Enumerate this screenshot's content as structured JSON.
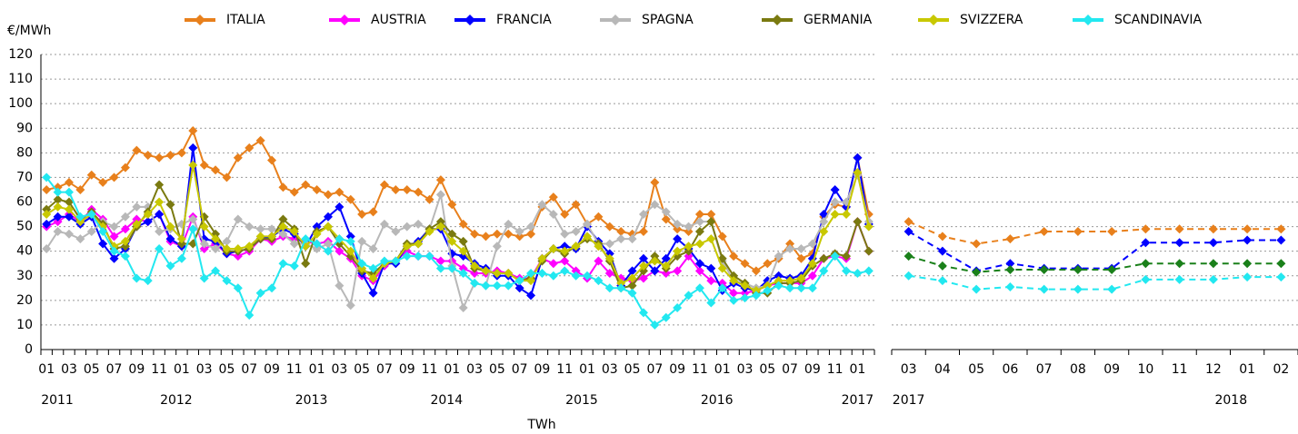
{
  "chart_data": [
    {
      "type": "line",
      "y_label": "€/MWh",
      "x_label": "TWh",
      "ylim": [
        0,
        120
      ],
      "yticks": [
        0,
        10,
        20,
        30,
        40,
        50,
        60,
        70,
        80,
        90,
        100,
        110,
        120
      ],
      "grid": true,
      "ytick_labels": true,
      "legend": "top",
      "categories": [
        "01",
        null,
        "03",
        null,
        "05",
        null,
        "07",
        null,
        "09",
        null,
        "11",
        null,
        "01",
        null,
        "03",
        null,
        "05",
        null,
        "07",
        null,
        "09",
        null,
        "11",
        null,
        "01",
        null,
        "03",
        null,
        "05",
        null,
        "07",
        null,
        "09",
        null,
        "11",
        null,
        "01",
        null,
        "03",
        null,
        "05",
        null,
        "07",
        null,
        "09",
        null,
        "11",
        null,
        "01",
        null,
        "03",
        null,
        "05",
        null,
        "07",
        null,
        "09",
        null,
        "11",
        null,
        "01",
        null,
        "03",
        null,
        "05",
        null,
        "07",
        null,
        "09",
        null,
        "11",
        null,
        "01",
        null
      ],
      "years": [
        "2011",
        "2012",
        "2013",
        "2014",
        "2015",
        "2016",
        "2017"
      ],
      "series": [
        {
          "name": "ITALIA",
          "color": "#e8801c",
          "values": [
            65,
            66,
            68,
            65,
            71,
            68,
            70,
            74,
            81,
            79,
            78,
            79,
            80,
            89,
            75,
            73,
            70,
            78,
            82,
            85,
            77,
            66,
            64,
            67,
            65,
            63,
            64,
            61,
            55,
            56,
            67,
            65,
            65,
            64,
            61,
            69,
            59,
            51,
            47,
            46,
            47,
            47,
            46,
            47,
            58,
            62,
            55,
            59,
            51,
            54,
            50,
            48,
            47,
            48,
            68,
            53,
            49,
            48,
            55,
            55,
            46,
            38,
            35,
            32,
            35,
            37,
            43,
            37,
            39,
            54,
            59,
            58,
            78,
            55
          ]
        },
        {
          "name": "AUSTRIA",
          "color": "#ff00ff",
          "values": [
            50,
            52,
            55,
            52,
            57,
            53,
            46,
            49,
            53,
            52,
            55,
            44,
            42,
            54,
            41,
            43,
            39,
            38,
            40,
            45,
            44,
            46,
            45,
            44,
            43,
            44,
            40,
            37,
            30,
            28,
            34,
            36,
            40,
            38,
            38,
            36,
            36,
            33,
            31,
            31,
            32,
            31,
            29,
            29,
            37,
            35,
            36,
            32,
            29,
            36,
            31,
            29,
            28,
            29,
            32,
            31,
            32,
            38,
            32,
            28,
            27,
            23,
            23,
            24,
            26,
            27,
            27,
            27,
            30,
            37,
            38,
            37,
            52,
            40
          ]
        },
        {
          "name": "FRANCIA",
          "color": "#0000ff",
          "values": [
            51,
            54,
            54,
            51,
            54,
            43,
            37,
            41,
            50,
            52,
            55,
            45,
            42,
            82,
            45,
            44,
            39,
            40,
            41,
            45,
            46,
            49,
            47,
            42,
            50,
            54,
            58,
            46,
            31,
            23,
            35,
            35,
            42,
            44,
            49,
            49,
            39,
            38,
            35,
            33,
            30,
            30,
            25,
            22,
            37,
            41,
            42,
            41,
            50,
            44,
            39,
            26,
            32,
            37,
            32,
            37,
            45,
            41,
            35,
            33,
            24,
            27,
            25,
            24,
            28,
            30,
            29,
            30,
            37,
            55,
            65,
            58,
            78,
            51
          ]
        },
        {
          "name": "SPAGNA",
          "color": "#b8b8b8",
          "values": [
            41,
            48,
            47,
            45,
            48,
            52,
            50,
            54,
            58,
            58,
            48,
            49,
            51,
            53,
            43,
            41,
            44,
            53,
            50,
            49,
            49,
            47,
            43,
            43,
            41,
            43,
            26,
            18,
            44,
            41,
            51,
            48,
            50,
            51,
            49,
            63,
            34,
            17,
            27,
            26,
            42,
            51,
            48,
            50,
            59,
            55,
            47,
            48,
            51,
            43,
            43,
            45,
            45,
            55,
            59,
            56,
            51,
            50,
            52,
            52,
            36,
            28,
            27,
            25,
            26,
            38,
            41,
            41,
            43,
            52,
            60,
            60,
            71,
            52
          ]
        },
        {
          "name": "GERMANIA",
          "color": "#7a7a10",
          "values": [
            57,
            61,
            60,
            53,
            56,
            51,
            41,
            42,
            50,
            56,
            67,
            59,
            43,
            43,
            54,
            47,
            40,
            40,
            41,
            45,
            45,
            53,
            49,
            35,
            48,
            50,
            43,
            38,
            32,
            31,
            35,
            36,
            43,
            43,
            49,
            52,
            47,
            44,
            33,
            32,
            31,
            31,
            28,
            29,
            36,
            41,
            39,
            42,
            45,
            43,
            36,
            25,
            26,
            32,
            38,
            33,
            38,
            40,
            48,
            52,
            37,
            30,
            27,
            23,
            23,
            27,
            27,
            28,
            34,
            37,
            39,
            38,
            52,
            40
          ]
        },
        {
          "name": "SVIZZERA",
          "color": "#c8c800",
          "values": [
            55,
            58,
            57,
            52,
            55,
            50,
            42,
            44,
            51,
            55,
            60,
            50,
            45,
            75,
            50,
            45,
            41,
            41,
            42,
            46,
            46,
            50,
            48,
            42,
            47,
            50,
            45,
            40,
            33,
            29,
            35,
            36,
            42,
            43,
            48,
            50,
            44,
            40,
            34,
            32,
            31,
            31,
            28,
            28,
            37,
            41,
            40,
            42,
            46,
            42,
            37,
            27,
            29,
            34,
            36,
            34,
            40,
            42,
            43,
            45,
            33,
            28,
            26,
            24,
            26,
            28,
            28,
            29,
            35,
            48,
            55,
            55,
            72,
            50
          ]
        },
        {
          "name": "SCANDINAVIA",
          "color": "#22e8f0",
          "values": [
            70,
            64,
            64,
            54,
            55,
            48,
            40,
            38,
            29,
            28,
            41,
            34,
            37,
            49,
            29,
            32,
            28,
            25,
            14,
            23,
            25,
            35,
            34,
            45,
            43,
            40,
            45,
            44,
            35,
            33,
            36,
            36,
            38,
            38,
            38,
            33,
            33,
            31,
            27,
            26,
            26,
            26,
            28,
            31,
            31,
            30,
            32,
            30,
            30,
            28,
            25,
            25,
            23,
            15,
            10,
            13,
            17,
            22,
            25,
            19,
            25,
            20,
            21,
            22,
            24,
            26,
            25,
            25,
            25,
            32,
            38,
            32,
            31,
            32
          ]
        }
      ]
    },
    {
      "type": "line",
      "dashed": true,
      "ylim": [
        0,
        120
      ],
      "yticks": [
        0,
        10,
        20,
        30,
        40,
        50,
        60,
        70,
        80,
        90,
        100,
        110,
        120
      ],
      "grid": true,
      "ytick_labels": false,
      "categories": [
        "03",
        "04",
        "05",
        "06",
        "07",
        "08",
        "09",
        "10",
        "11",
        "12",
        "01",
        "02"
      ],
      "years": [
        "2017",
        "2018"
      ],
      "series": [
        {
          "color": "#e8801c",
          "values": [
            52,
            46,
            43,
            45,
            48,
            48,
            48,
            49,
            49,
            49,
            49,
            49
          ]
        },
        {
          "color": "#0000ff",
          "values": [
            48,
            40,
            32,
            35,
            33,
            33,
            33,
            43.5,
            43.5,
            43.5,
            44.5,
            44.5
          ]
        },
        {
          "color": "#1a801a",
          "values": [
            38,
            34,
            31.5,
            32.5,
            32.5,
            32.5,
            32.5,
            35,
            35,
            35,
            35,
            35
          ]
        },
        {
          "color": "#22e8f0",
          "values": [
            30,
            28,
            24.5,
            25.5,
            24.5,
            24.5,
            24.5,
            28.5,
            28.5,
            28.5,
            29.5,
            29.5
          ]
        }
      ]
    }
  ]
}
